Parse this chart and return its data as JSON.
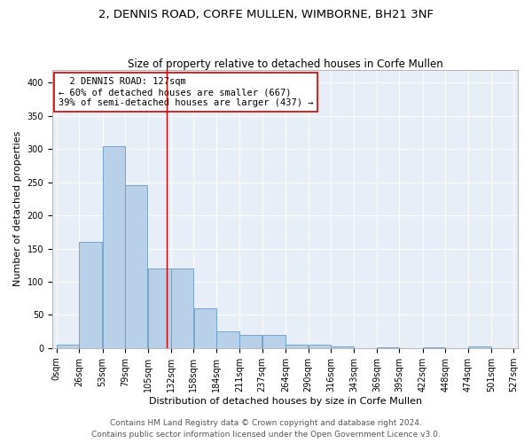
{
  "title_line1": "2, DENNIS ROAD, CORFE MULLEN, WIMBORNE, BH21 3NF",
  "title_line2": "Size of property relative to detached houses in Corfe Mullen",
  "xlabel": "Distribution of detached houses by size in Corfe Mullen",
  "ylabel": "Number of detached properties",
  "footer_line1": "Contains HM Land Registry data © Crown copyright and database right 2024.",
  "footer_line2": "Contains public sector information licensed under the Open Government Licence v3.0.",
  "annotation_line1": "  2 DENNIS ROAD: 127sqm",
  "annotation_line2": "← 60% of detached houses are smaller (667)",
  "annotation_line3": "39% of semi-detached houses are larger (437) →",
  "property_size": 127,
  "bin_edges": [
    0,
    26,
    53,
    79,
    105,
    132,
    158,
    184,
    211,
    237,
    264,
    290,
    316,
    343,
    369,
    395,
    422,
    448,
    474,
    501,
    527
  ],
  "bar_heights": [
    5,
    160,
    305,
    245,
    120,
    120,
    60,
    25,
    20,
    20,
    5,
    5,
    2,
    0,
    1,
    0,
    1,
    0,
    2,
    0
  ],
  "bar_color": "#b8d0e8",
  "bar_edge_color": "#6699cc",
  "vline_color": "#cc0000",
  "annotation_box_color": "#ffffff",
  "annotation_box_edge": "#cc0000",
  "plot_background": "#e8eef8",
  "ylim": [
    0,
    420
  ],
  "yticks": [
    0,
    50,
    100,
    150,
    200,
    250,
    300,
    350,
    400
  ],
  "title_fontsize": 9.5,
  "subtitle_fontsize": 8.5,
  "axis_label_fontsize": 8,
  "tick_fontsize": 7,
  "annotation_fontsize": 7.5,
  "footer_fontsize": 6.5
}
